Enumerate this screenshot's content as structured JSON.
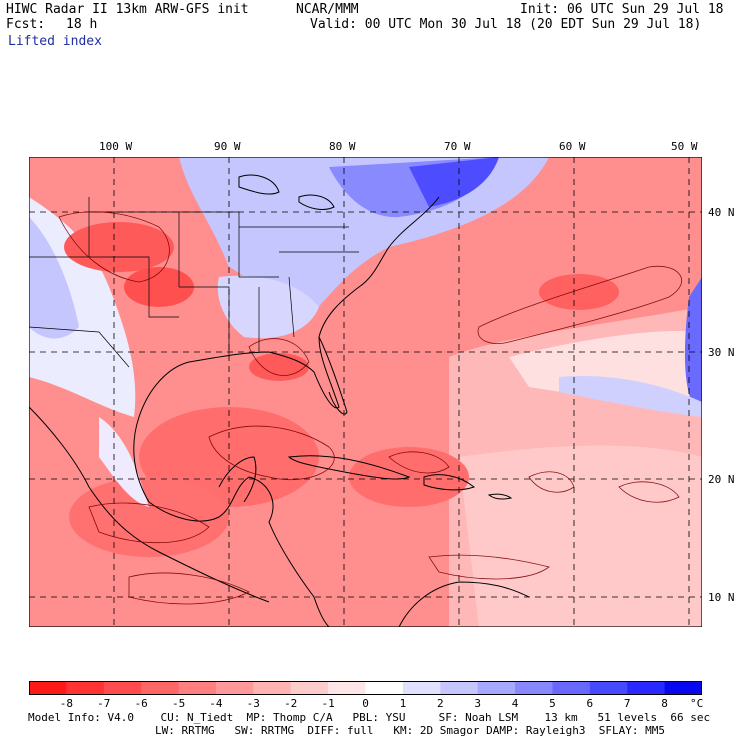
{
  "header": {
    "title": "HIWC Radar II 13km ARW-GFS init",
    "org": "NCAR/MMM",
    "init": "Init: 06 UTC Sun 29 Jul 18",
    "fcst_label": "Fcst:",
    "fcst_value": "18 h",
    "valid": "Valid: 00 UTC Mon 30 Jul 18 (20 EDT Sun 29 Jul 18)",
    "field": "Lifted index"
  },
  "map": {
    "lon_labels": [
      "100 W",
      "90 W",
      "80 W",
      "70 W",
      "60 W",
      "50 W"
    ],
    "lat_labels": [
      "40 N",
      "30 N",
      "20 N",
      "10 N"
    ]
  },
  "colorbar": {
    "unit": "°C",
    "labels": [
      "-8",
      "-7",
      "-6",
      "-5",
      "-4",
      "-3",
      "-2",
      "-1",
      "0",
      "1",
      "2",
      "3",
      "4",
      "5",
      "6",
      "7",
      "8"
    ],
    "colors": [
      "#ff1a1a",
      "#ff3333",
      "#ff4d4d",
      "#ff6666",
      "#ff7f7f",
      "#ff9999",
      "#ffb3b3",
      "#ffcccc",
      "#ffe6e6",
      "#ffffff",
      "#e0e0ff",
      "#c6c6ff",
      "#a8a8ff",
      "#8888ff",
      "#6868ff",
      "#4848ff",
      "#2828ff",
      "#0808ee"
    ]
  },
  "footer": {
    "line1": "Model Info: V4.0    CU: N_Tiedt  MP: Thomp C/A   PBL: YSU     SF: Noah LSM    13 km   51 levels  66 sec",
    "line2": "LW: RRTMG   SW: RRTMG  DIFF: full   KM: 2D Smagor DAMP: Rayleigh3  SFLAY: MM5"
  }
}
